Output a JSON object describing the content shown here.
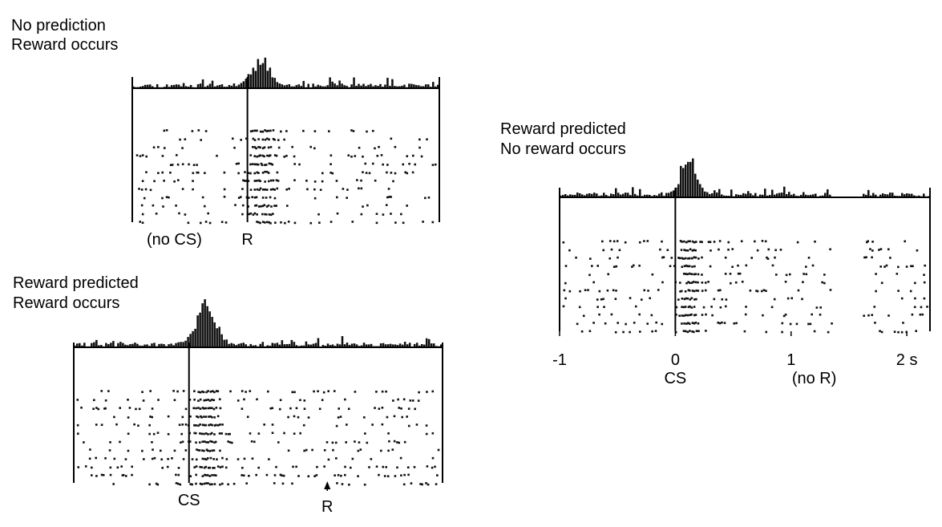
{
  "chart_data": [
    {
      "type": "scatter",
      "subtype": "raster-psth",
      "title_lines": [
        "No prediction",
        "Reward occurs"
      ],
      "xlim": [
        -1.2,
        2.0
      ],
      "event_line_at": 0,
      "markers": [
        {
          "label": "(no CS)",
          "x": -1.05,
          "arrow": false
        },
        {
          "label": "R",
          "x": 0,
          "arrow": false
        }
      ],
      "trials": 12,
      "peaks": [
        {
          "x": 0.15,
          "sigma": 0.1,
          "strength": 6
        }
      ],
      "gaps": [],
      "density": 0.55,
      "seed": 11
    },
    {
      "type": "scatter",
      "subtype": "raster-psth",
      "title_lines": [
        "Reward predicted",
        "Reward occurs"
      ],
      "xlim": [
        -1.0,
        2.2
      ],
      "event_line_at": 0,
      "markers": [
        {
          "label": "CS",
          "x": 0,
          "arrow": false
        },
        {
          "label": "R",
          "x": 1.2,
          "arrow": true
        }
      ],
      "trials": 12,
      "peaks": [
        {
          "x": 0.15,
          "sigma": 0.08,
          "strength": 7
        }
      ],
      "gaps": [],
      "density": 0.65,
      "seed": 29
    },
    {
      "type": "scatter",
      "subtype": "raster-psth",
      "title_lines": [
        "Reward predicted",
        "No reward occurs"
      ],
      "xlim": [
        -1.0,
        2.2
      ],
      "event_line_at": 0,
      "ticks": [
        {
          "value": -1,
          "label": "-1"
        },
        {
          "value": 0,
          "label": "0"
        },
        {
          "value": 1,
          "label": "1"
        },
        {
          "value": 2,
          "label": "2 s"
        }
      ],
      "markers": [
        {
          "label": "CS",
          "x": 0,
          "arrow": false
        },
        {
          "label": "(no R)",
          "x": 1.2,
          "arrow": false
        }
      ],
      "trials": 12,
      "peaks": [
        {
          "x": 0.12,
          "sigma": 0.06,
          "strength": 7
        }
      ],
      "gaps": [
        [
          1.35,
          1.62
        ]
      ],
      "density": 0.6,
      "seed": 47
    }
  ]
}
